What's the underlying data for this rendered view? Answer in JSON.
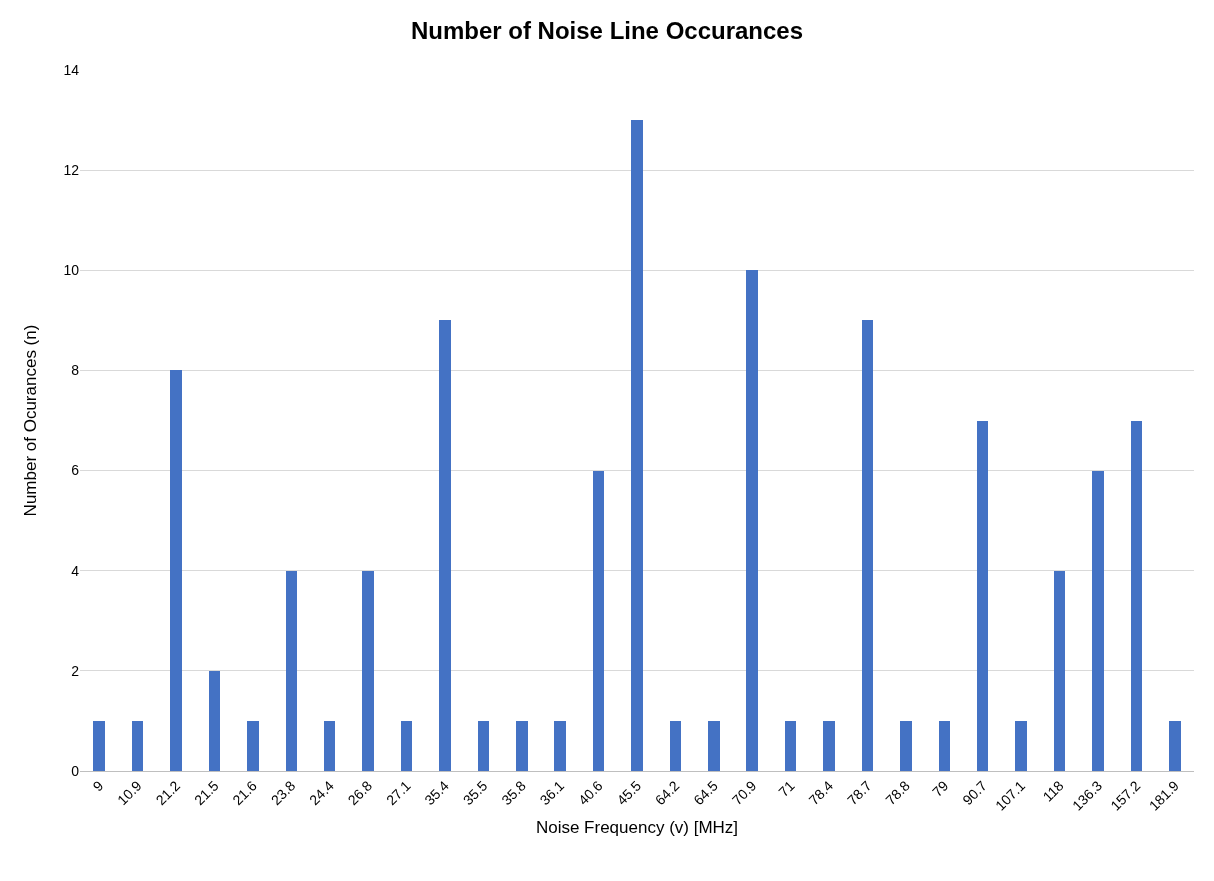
{
  "chart_data": {
    "type": "bar",
    "title": "Number of Noise Line Occurances",
    "xlabel": "Noise Frequency (v) [MHz]",
    "ylabel": "Number of Ocurances (n)",
    "categories": [
      "9",
      "10.9",
      "21.2",
      "21.5",
      "21.6",
      "23.8",
      "24.4",
      "26.8",
      "27.1",
      "35.4",
      "35.5",
      "35.8",
      "36.1",
      "40.6",
      "45.5",
      "64.2",
      "64.5",
      "70.9",
      "71",
      "78.4",
      "78.7",
      "78.8",
      "79",
      "90.7",
      "107.1",
      "118",
      "136.3",
      "157.2",
      "181.9"
    ],
    "values": [
      1,
      1,
      8,
      2,
      1,
      4,
      1,
      4,
      1,
      9,
      1,
      1,
      1,
      6,
      13,
      1,
      1,
      10,
      1,
      1,
      9,
      1,
      1,
      7,
      1,
      4,
      6,
      7,
      1
    ],
    "color": "#4472c4",
    "ylim": [
      0,
      14
    ],
    "yticks": [
      0,
      2,
      4,
      6,
      8,
      10,
      12,
      14
    ],
    "grid": "y"
  }
}
